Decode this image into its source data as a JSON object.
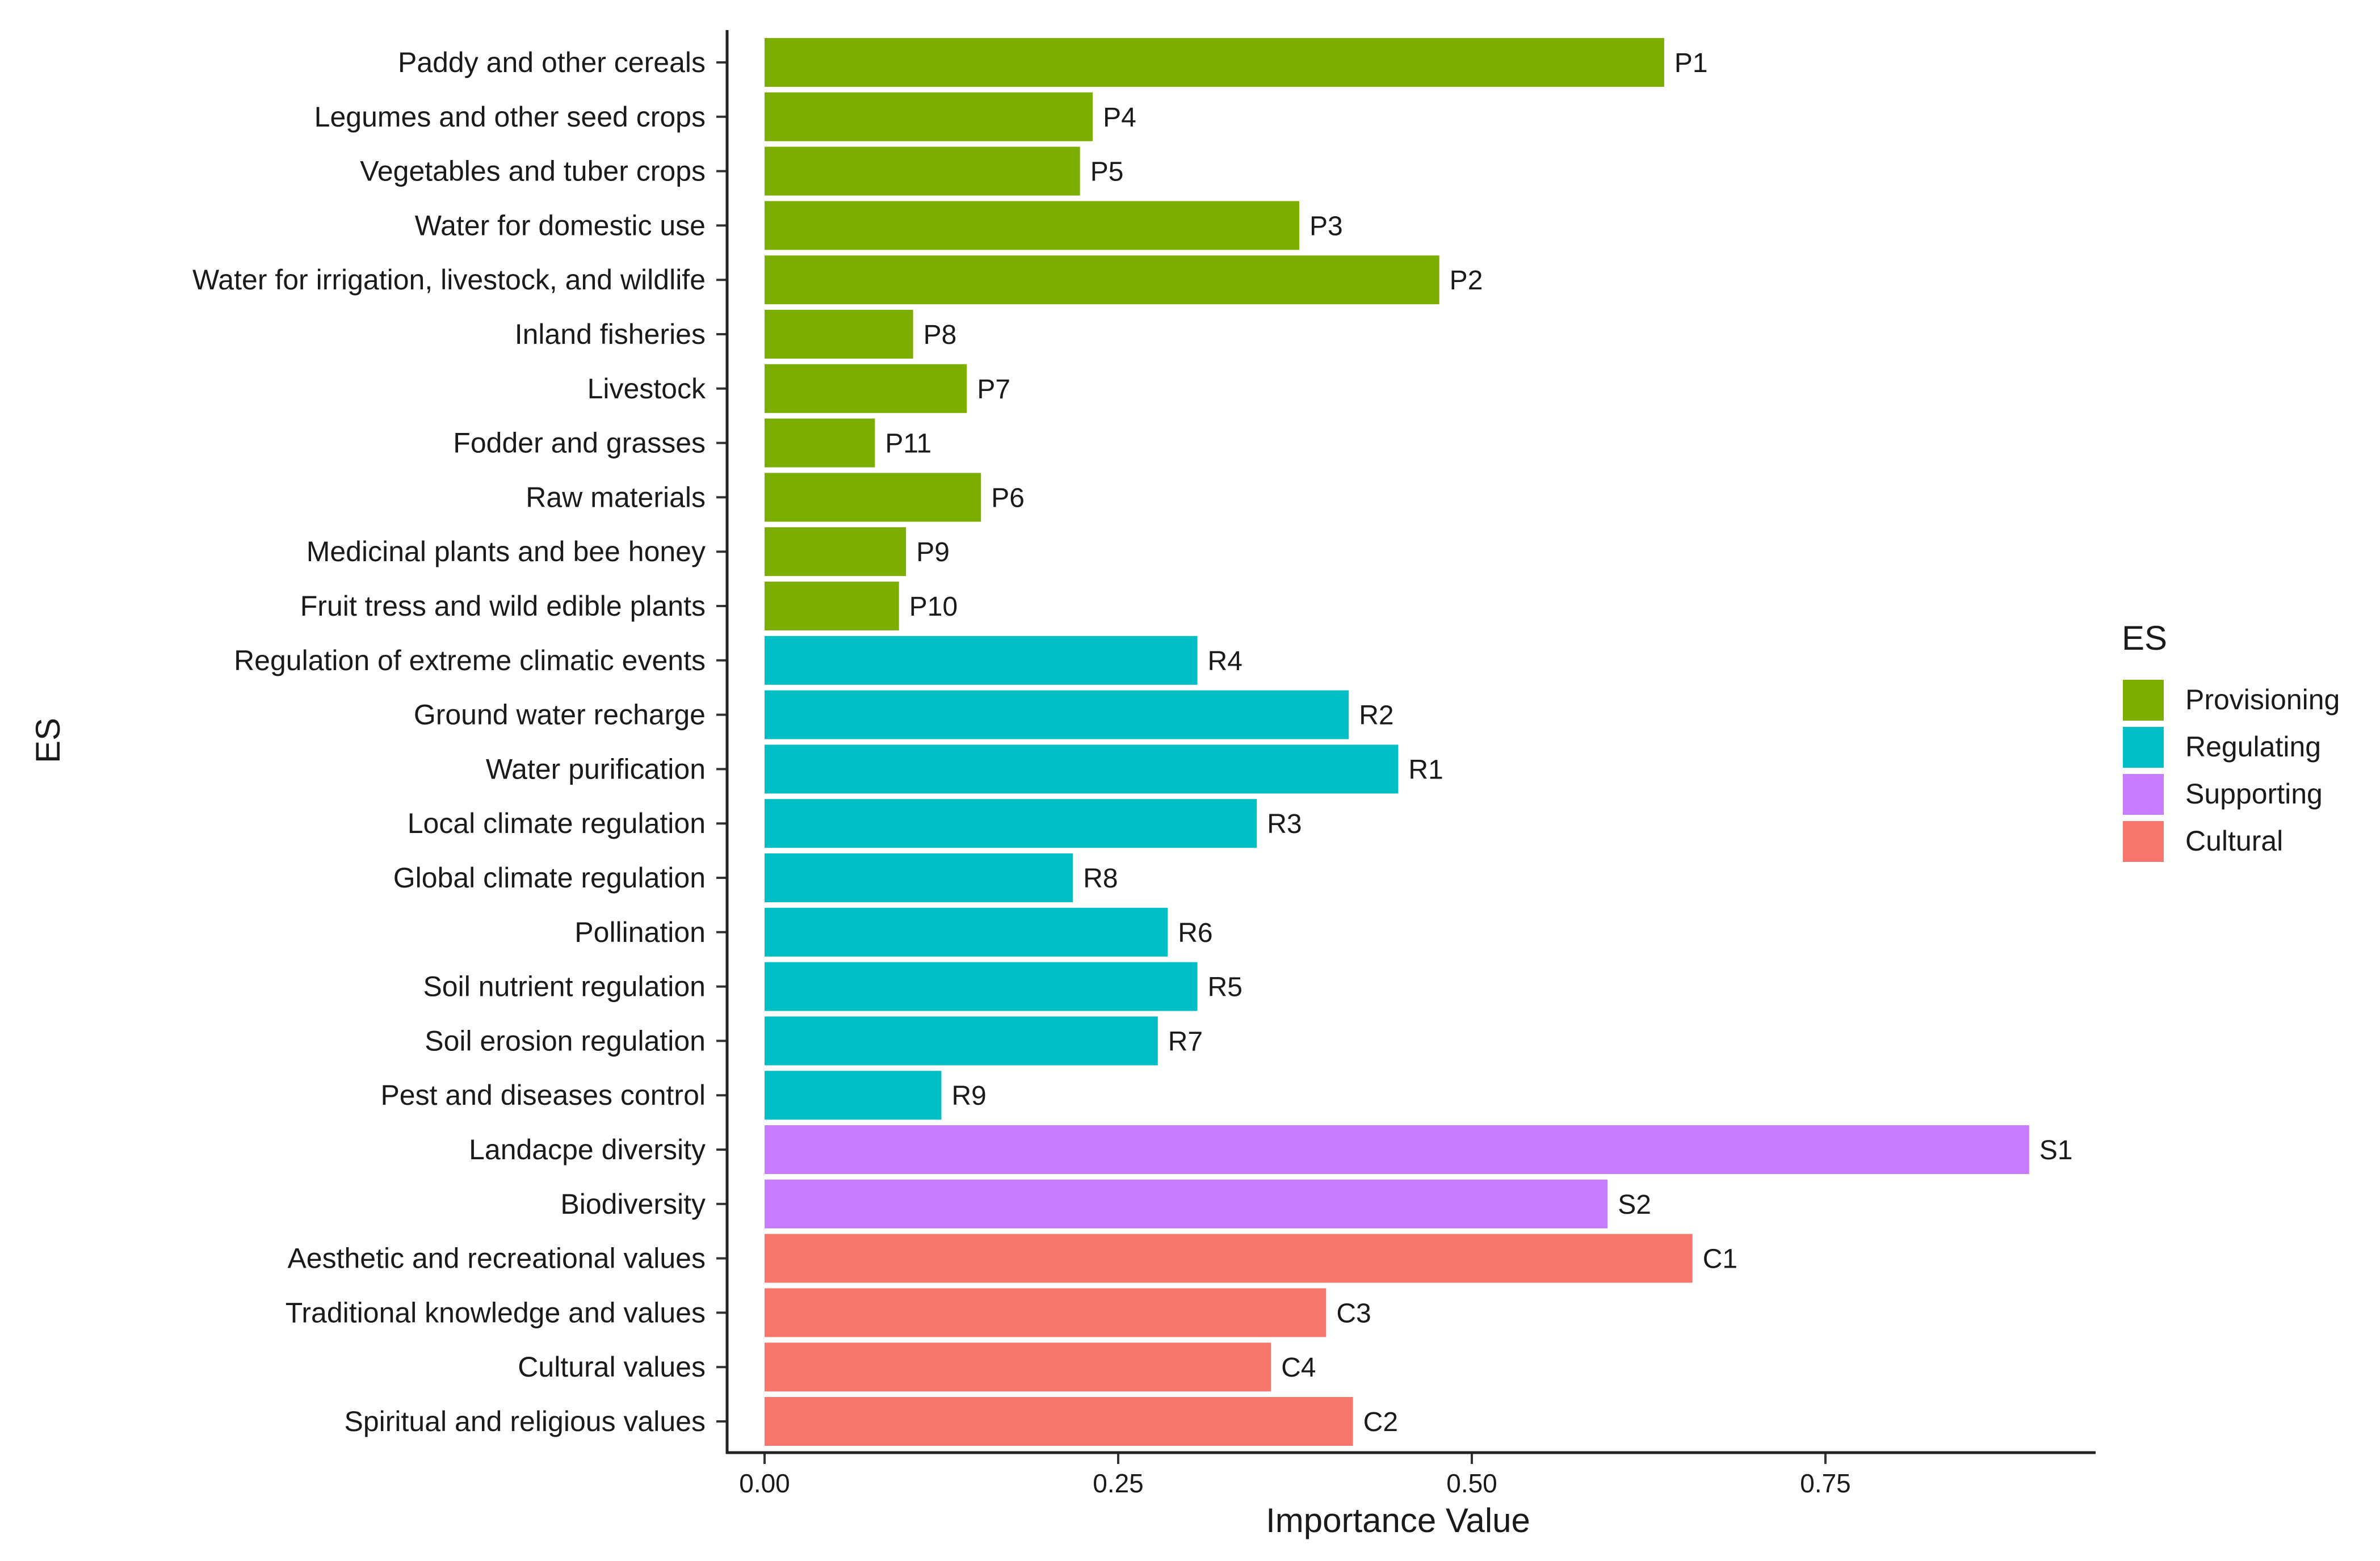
{
  "chart_data": {
    "type": "bar",
    "orientation": "horizontal",
    "title": "",
    "xlabel": "Importance Value",
    "ylabel": "ES",
    "xlim": [
      0,
      0.94
    ],
    "xticks": [
      0,
      0.25,
      0.5,
      0.75
    ],
    "xtick_labels": [
      "0.00",
      "0.25",
      "0.50",
      "0.75"
    ],
    "grid": false,
    "legend": {
      "title": "ES",
      "placement": "right",
      "entries": [
        {
          "name": "Provisioning",
          "color": "#7CAE00"
        },
        {
          "name": "Regulating",
          "color": "#00BFC4"
        },
        {
          "name": "Supporting",
          "color": "#C77CFF"
        },
        {
          "name": "Cultural",
          "color": "#F8766D"
        }
      ]
    },
    "bars": [
      {
        "category": "Paddy and other cereals",
        "value": 0.636,
        "label": "P1",
        "group": "Provisioning"
      },
      {
        "category": "Legumes and other seed crops",
        "value": 0.232,
        "label": "P4",
        "group": "Provisioning"
      },
      {
        "category": "Vegetables and tuber crops",
        "value": 0.223,
        "label": "P5",
        "group": "Provisioning"
      },
      {
        "category": "Water for domestic use",
        "value": 0.378,
        "label": "P3",
        "group": "Provisioning"
      },
      {
        "category": "Water for irrigation, livestock, and wildlife",
        "value": 0.477,
        "label": "P2",
        "group": "Provisioning"
      },
      {
        "category": "Inland fisheries",
        "value": 0.105,
        "label": "P8",
        "group": "Provisioning"
      },
      {
        "category": "Livestock",
        "value": 0.143,
        "label": "P7",
        "group": "Provisioning"
      },
      {
        "category": "Fodder and grasses",
        "value": 0.078,
        "label": "P11",
        "group": "Provisioning"
      },
      {
        "category": "Raw materials",
        "value": 0.153,
        "label": "P6",
        "group": "Provisioning"
      },
      {
        "category": "Medicinal plants and bee honey",
        "value": 0.1,
        "label": "P9",
        "group": "Provisioning"
      },
      {
        "category": "Fruit tress and wild edible plants",
        "value": 0.095,
        "label": "P10",
        "group": "Provisioning"
      },
      {
        "category": "Regulation of extreme climatic events",
        "value": 0.306,
        "label": "R4",
        "group": "Regulating"
      },
      {
        "category": "Ground water recharge",
        "value": 0.413,
        "label": "R2",
        "group": "Regulating"
      },
      {
        "category": "Water purification",
        "value": 0.448,
        "label": "R1",
        "group": "Regulating"
      },
      {
        "category": "Local climate regulation",
        "value": 0.348,
        "label": "R3",
        "group": "Regulating"
      },
      {
        "category": "Global climate regulation",
        "value": 0.218,
        "label": "R8",
        "group": "Regulating"
      },
      {
        "category": "Pollination",
        "value": 0.285,
        "label": "R6",
        "group": "Regulating"
      },
      {
        "category": "Soil nutrient regulation",
        "value": 0.306,
        "label": "R5",
        "group": "Regulating"
      },
      {
        "category": "Soil erosion regulation",
        "value": 0.278,
        "label": "R7",
        "group": "Regulating"
      },
      {
        "category": "Pest and diseases control",
        "value": 0.125,
        "label": "R9",
        "group": "Regulating"
      },
      {
        "category": "Landacpe diversity",
        "value": 0.894,
        "label": "S1",
        "group": "Supporting"
      },
      {
        "category": "Biodiversity",
        "value": 0.596,
        "label": "S2",
        "group": "Supporting"
      },
      {
        "category": "Aesthetic and recreational values",
        "value": 0.656,
        "label": "C1",
        "group": "Cultural"
      },
      {
        "category": "Traditional knowledge and values",
        "value": 0.397,
        "label": "C3",
        "group": "Cultural"
      },
      {
        "category": "Cultural values",
        "value": 0.358,
        "label": "C4",
        "group": "Cultural"
      },
      {
        "category": "Spiritual and religious values",
        "value": 0.416,
        "label": "C2",
        "group": "Cultural"
      }
    ]
  }
}
